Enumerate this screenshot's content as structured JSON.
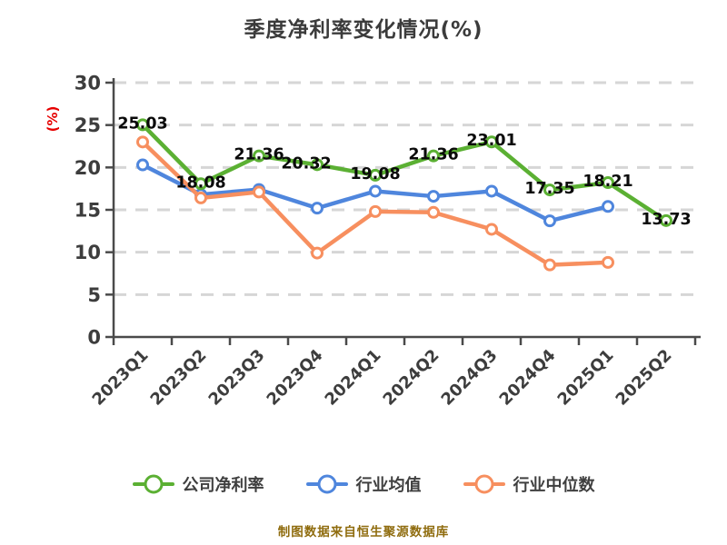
{
  "title": "季度净利率变化情况(%)",
  "footer": "制图数据来自恒生聚源数据库",
  "y_axis_unit": "(%)",
  "colors": {
    "title": "#3b3b3b",
    "axis": "#4a4a4a",
    "tick_label": "#3d3d3d",
    "grid": "#d6d6d6",
    "data_label": "#0a0a0a",
    "unit_label": "#e60000",
    "footer": "#8f6c0e",
    "marker_fill": "#ffffff",
    "background": "#ffffff"
  },
  "chart_data": {
    "type": "line",
    "title": "季度净利率变化情况(%)",
    "xlabel": "",
    "ylabel": "(%)",
    "ylim": [
      0,
      30
    ],
    "y_ticks": [
      0,
      5,
      10,
      15,
      20,
      25,
      30
    ],
    "grid": "horizontal-dashed",
    "legend_position": "bottom",
    "categories": [
      "2023Q1",
      "2023Q2",
      "2023Q3",
      "2023Q4",
      "2024Q1",
      "2024Q2",
      "2024Q3",
      "2024Q4",
      "2025Q1",
      "2025Q2"
    ],
    "series": [
      {
        "key": "company-net-margin",
        "name": "公司净利率",
        "color": "#5bb033",
        "values": [
          25.03,
          18.08,
          21.36,
          20.32,
          19.08,
          21.36,
          23.01,
          17.35,
          18.21,
          13.73
        ],
        "point_labels": [
          "25.03",
          "18.08",
          "21.36",
          "20.32",
          "19.08",
          "21.36",
          "23.01",
          "17.35",
          "18.21",
          "13.73"
        ],
        "label_dx": [
          0,
          0,
          0,
          -12,
          0,
          0,
          0,
          0,
          0,
          0
        ]
      },
      {
        "key": "industry-mean",
        "name": "行业均值",
        "color": "#4f86dd",
        "values": [
          20.3,
          16.8,
          17.4,
          15.2,
          17.2,
          16.6,
          17.2,
          13.7,
          15.4,
          null
        ],
        "point_labels": null,
        "label_dx": null
      },
      {
        "key": "industry-median",
        "name": "行业中位数",
        "color": "#f78f5f",
        "values": [
          23.0,
          16.4,
          17.1,
          9.9,
          14.8,
          14.7,
          12.7,
          8.5,
          8.8,
          null
        ],
        "point_labels": null,
        "label_dx": null
      }
    ]
  }
}
